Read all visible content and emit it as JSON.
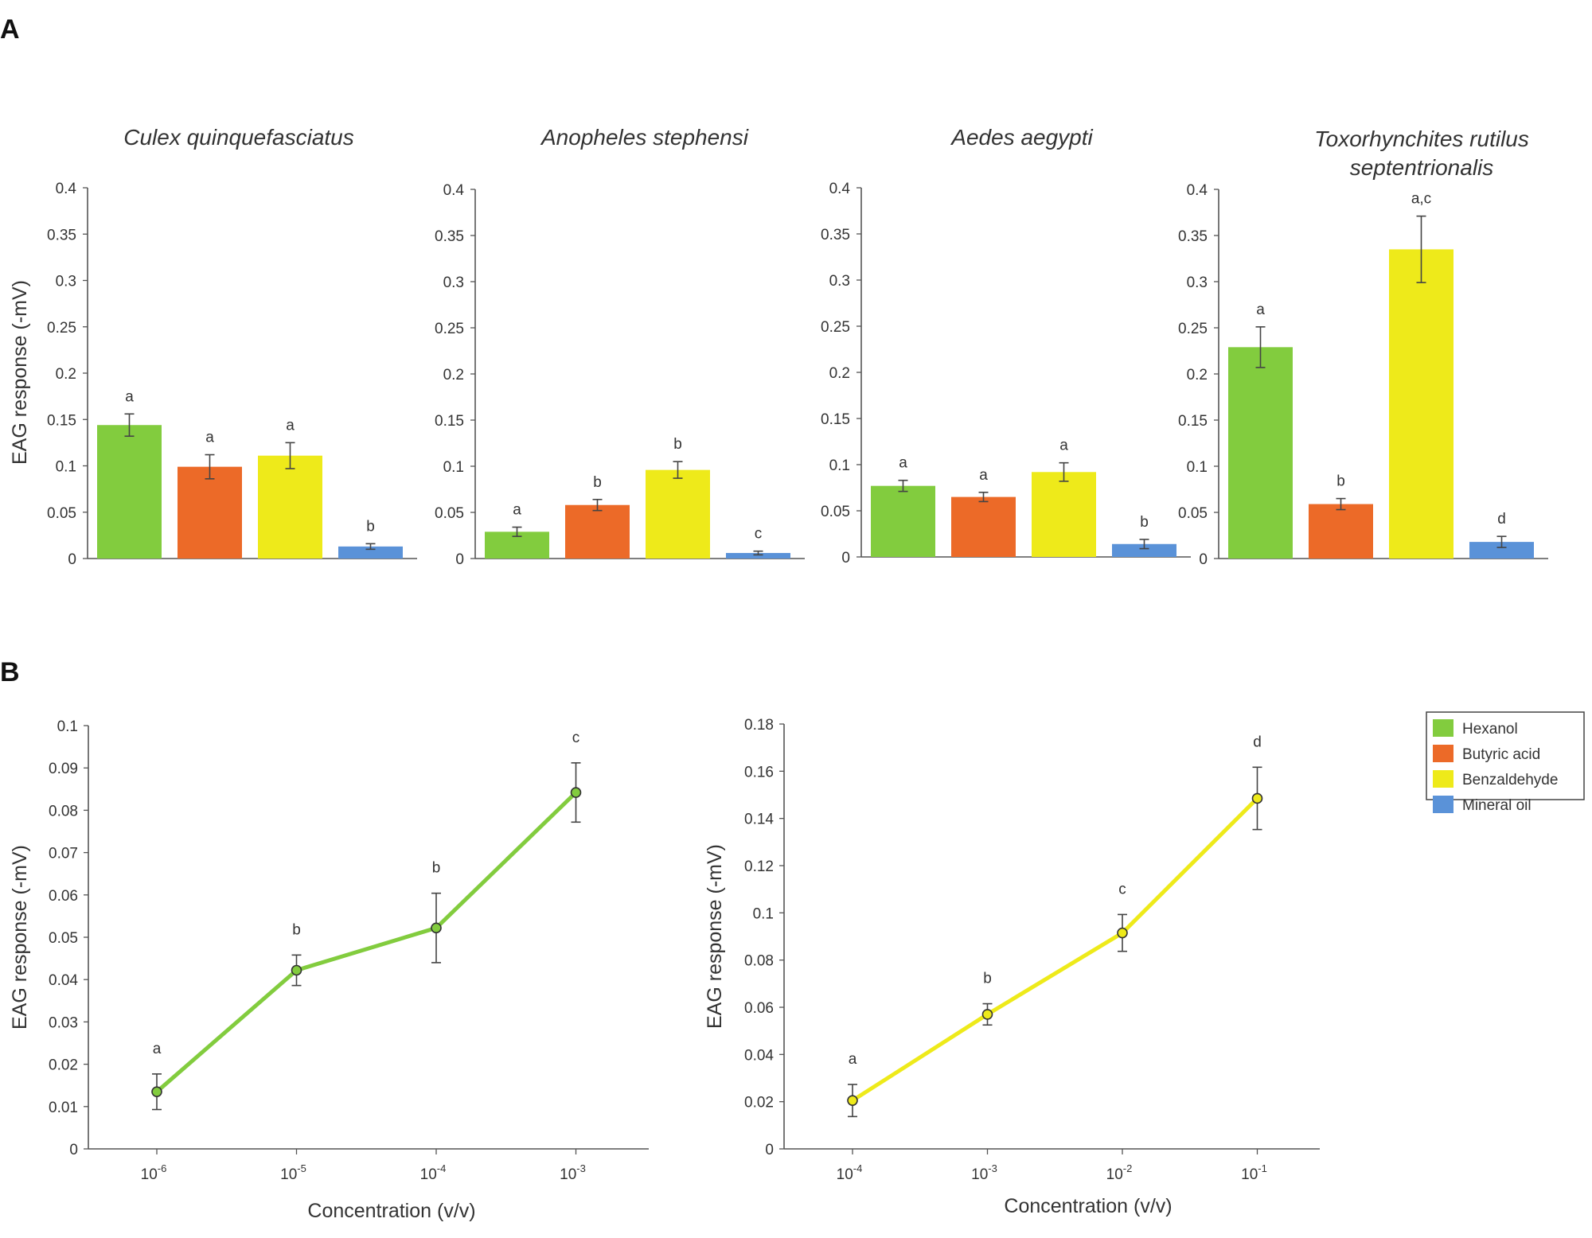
{
  "panels": {
    "a": "A",
    "b": "B"
  },
  "colors": {
    "hexanol": "#82cc3e",
    "butyric": "#ec6a28",
    "benzaldehyde": "#eeea1a",
    "mineral": "#5a92d8"
  },
  "legend": {
    "items": [
      {
        "label": "Hexanol",
        "color": "#82cc3e"
      },
      {
        "label": "Butyric acid",
        "color": "#ec6a28"
      },
      {
        "label": "Benzaldehyde",
        "color": "#eeea1a"
      },
      {
        "label": "Mineral oil",
        "color": "#5a92d8"
      }
    ]
  },
  "chart_data": [
    {
      "type": "bar",
      "title": [
        "Culex quinquefasciatus"
      ],
      "ylabel": "EAG response (-mV)",
      "ylim": [
        0,
        0.4
      ],
      "yticks": [
        "0",
        "0.05",
        "0.1",
        "0.15",
        "0.2",
        "0.25",
        "0.3",
        "0.35",
        "0.4"
      ],
      "categories": [
        "Hexanol",
        "Butyric acid",
        "Benzaldehyde",
        "Mineral oil"
      ],
      "values": [
        0.144,
        0.099,
        0.111,
        0.013
      ],
      "errors": [
        0.012,
        0.013,
        0.014,
        0.003
      ],
      "letters": [
        "a",
        "a",
        "a",
        "b"
      ]
    },
    {
      "type": "bar",
      "title": [
        "Anopheles stephensi"
      ],
      "ylim": [
        0,
        0.4
      ],
      "yticks": [
        "0",
        "0.05",
        "0.1",
        "0.15",
        "0.2",
        "0.25",
        "0.3",
        "0.35",
        "0.4"
      ],
      "categories": [
        "Hexanol",
        "Butyric acid",
        "Benzaldehyde",
        "Mineral oil"
      ],
      "values": [
        0.029,
        0.058,
        0.096,
        0.006
      ],
      "errors": [
        0.005,
        0.006,
        0.009,
        0.002
      ],
      "letters": [
        "a",
        "b",
        "b",
        "c"
      ]
    },
    {
      "type": "bar",
      "title": [
        "Aedes aegypti"
      ],
      "ylim": [
        0,
        0.4
      ],
      "yticks": [
        "0",
        "0.05",
        "0.1",
        "0.15",
        "0.2",
        "0.25",
        "0.3",
        "0.35",
        "0.4"
      ],
      "categories": [
        "Hexanol",
        "Butyric acid",
        "Benzaldehyde",
        "Mineral oil"
      ],
      "values": [
        0.077,
        0.065,
        0.092,
        0.014
      ],
      "errors": [
        0.006,
        0.005,
        0.01,
        0.005
      ],
      "letters": [
        "a",
        "a",
        "a",
        "b"
      ]
    },
    {
      "type": "bar",
      "title": [
        "Toxorhynchites rutilus",
        "septentrionalis"
      ],
      "ylim": [
        0,
        0.4
      ],
      "yticks": [
        "0",
        "0.05",
        "0.1",
        "0.15",
        "0.2",
        "0.25",
        "0.3",
        "0.35",
        "0.4"
      ],
      "categories": [
        "Hexanol",
        "Butyric acid",
        "Benzaldehyde",
        "Mineral oil"
      ],
      "values": [
        0.229,
        0.059,
        0.335,
        0.018
      ],
      "errors": [
        0.022,
        0.006,
        0.036,
        0.006
      ],
      "letters": [
        "a",
        "b",
        "a,c",
        "d"
      ]
    },
    {
      "type": "line",
      "series_name": "Hexanol",
      "ylabel": "EAG response (-mV)",
      "xlabel": "Concentration (v/v)",
      "ylim": [
        0,
        0.1
      ],
      "yticks": [
        "0",
        "0.01",
        "0.02",
        "0.03",
        "0.04",
        "0.05",
        "0.06",
        "0.07",
        "0.08",
        "0.09",
        "0.1"
      ],
      "x_exponents": [
        "-6",
        "-5",
        "-4",
        "-3"
      ],
      "values": [
        0.0135,
        0.0422,
        0.0522,
        0.0842
      ],
      "errors": [
        0.0042,
        0.0036,
        0.0082,
        0.007
      ],
      "letters": [
        "a",
        "b",
        "b",
        "c"
      ]
    },
    {
      "type": "line",
      "series_name": "Benzaldehyde",
      "ylabel": "EAG response (-mV)",
      "xlabel": "Concentration (v/v)",
      "ylim": [
        0,
        0.18
      ],
      "yticks": [
        "0",
        "0.02",
        "0.04",
        "0.06",
        "0.08",
        "0.1",
        "0.12",
        "0.14",
        "0.16",
        "0.18"
      ],
      "x_exponents": [
        "-4",
        "-3",
        "-2",
        "-1"
      ],
      "values": [
        0.0205,
        0.057,
        0.0915,
        0.1485
      ],
      "errors": [
        0.0068,
        0.0045,
        0.0078,
        0.0132
      ],
      "letters": [
        "a",
        "b",
        "c",
        "d"
      ]
    }
  ]
}
